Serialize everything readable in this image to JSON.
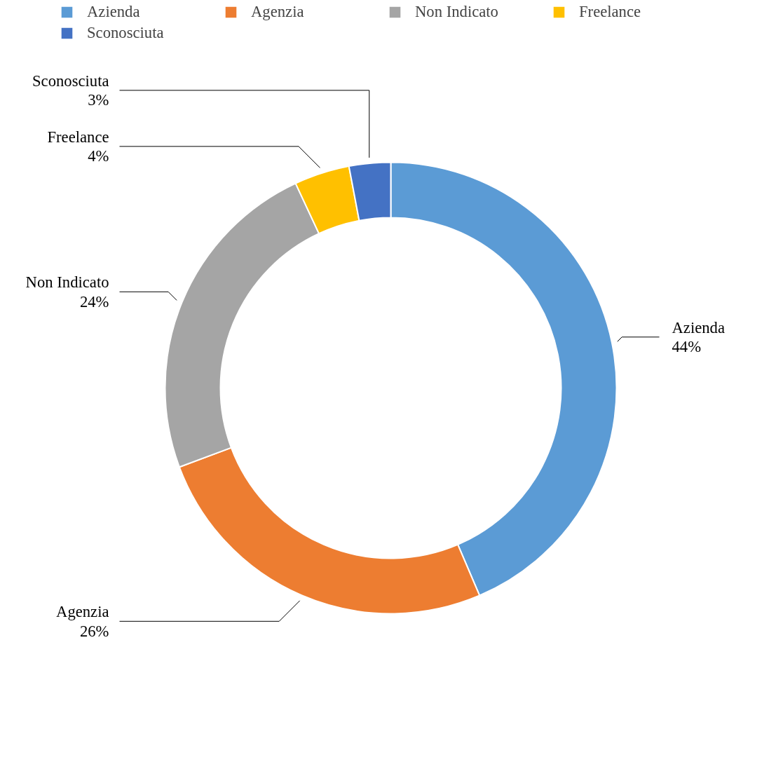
{
  "chart_data": {
    "type": "donut",
    "categories": [
      "Azienda",
      "Agenzia",
      "Non Indicato",
      "Freelance",
      "Sconosciuta"
    ],
    "values": [
      44,
      26,
      24,
      4,
      3
    ],
    "colors": [
      "#5b9bd5",
      "#ed7d31",
      "#a5a5a5",
      "#ffc000",
      "#4472c4"
    ],
    "value_labels": [
      "44%",
      "26%",
      "24%",
      "4%",
      "3%"
    ],
    "legend": "top"
  }
}
